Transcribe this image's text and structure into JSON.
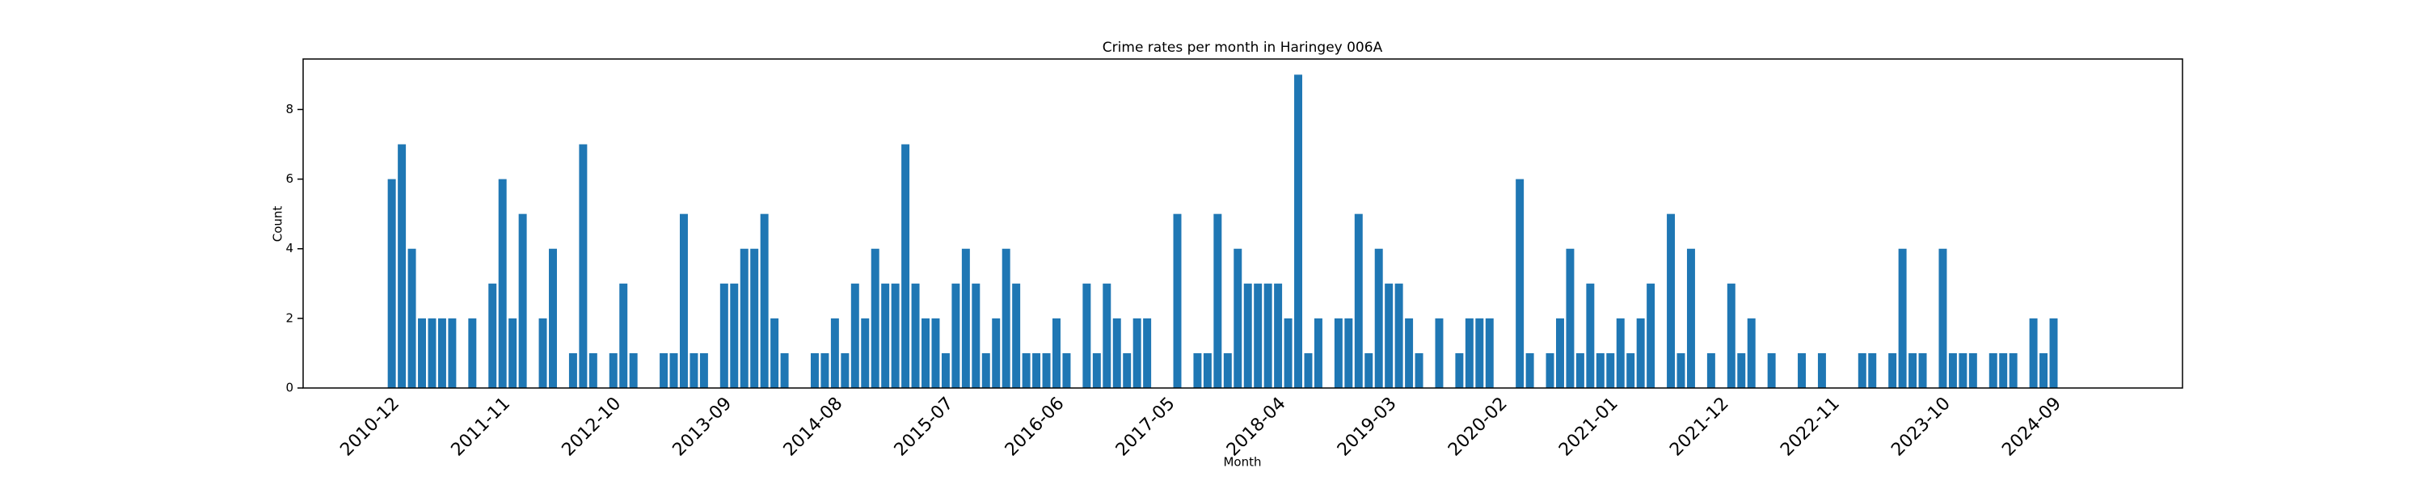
{
  "chart_data": {
    "type": "bar",
    "title": "Crime rates per month in Haringey 006A",
    "x_label": "Month",
    "y_label": "Count",
    "categories": [
      "2010-12",
      null,
      null,
      null,
      null,
      null,
      null,
      null,
      null,
      null,
      null,
      "2011-11",
      null,
      null,
      null,
      null,
      null,
      null,
      null,
      null,
      null,
      null,
      "2012-10",
      null,
      null,
      null,
      null,
      null,
      null,
      null,
      null,
      null,
      null,
      "2013-09",
      null,
      null,
      null,
      null,
      null,
      null,
      null,
      null,
      null,
      null,
      "2014-08",
      null,
      null,
      null,
      null,
      null,
      null,
      null,
      null,
      null,
      null,
      "2015-07",
      null,
      null,
      null,
      null,
      null,
      null,
      null,
      null,
      null,
      null,
      "2016-06",
      null,
      null,
      null,
      null,
      null,
      null,
      null,
      null,
      null,
      null,
      "2017-05",
      null,
      null,
      null,
      null,
      null,
      null,
      null,
      null,
      null,
      null,
      "2018-04",
      null,
      null,
      null,
      null,
      null,
      null,
      null,
      null,
      null,
      null,
      "2019-03",
      null,
      null,
      null,
      null,
      null,
      null,
      null,
      null,
      null,
      null,
      "2020-02",
      null,
      null,
      null,
      null,
      null,
      null,
      null,
      null,
      null,
      null,
      "2021-01",
      null,
      null,
      null,
      null,
      null,
      null,
      null,
      null,
      null,
      null,
      "2021-12",
      null,
      null,
      null,
      null,
      null,
      null,
      null,
      null,
      null,
      null,
      "2022-11",
      null,
      null,
      null,
      null,
      null,
      null,
      null,
      null,
      null,
      null,
      "2023-10",
      null,
      null,
      null,
      null,
      null,
      null,
      null,
      null,
      null,
      null,
      "2024-09"
    ],
    "values": [
      6,
      7,
      4,
      2,
      2,
      2,
      2,
      0,
      2,
      0,
      3,
      6,
      2,
      5,
      0,
      2,
      4,
      0,
      1,
      7,
      1,
      0,
      1,
      3,
      1,
      0,
      0,
      1,
      1,
      5,
      1,
      1,
      0,
      3,
      3,
      4,
      4,
      5,
      2,
      1,
      0,
      0,
      1,
      1,
      2,
      1,
      3,
      2,
      4,
      3,
      3,
      7,
      3,
      2,
      2,
      1,
      3,
      4,
      3,
      1,
      2,
      4,
      3,
      1,
      1,
      1,
      2,
      1,
      0,
      3,
      1,
      3,
      2,
      1,
      2,
      2,
      0,
      0,
      5,
      0,
      1,
      1,
      5,
      1,
      4,
      3,
      3,
      3,
      3,
      2,
      9,
      1,
      2,
      0,
      2,
      2,
      5,
      1,
      4,
      3,
      3,
      2,
      1,
      0,
      2,
      0,
      1,
      2,
      2,
      2,
      0,
      0,
      6,
      1,
      0,
      1,
      2,
      4,
      1,
      3,
      1,
      1,
      2,
      1,
      2,
      3,
      0,
      5,
      1,
      4,
      0,
      1,
      0,
      3,
      1,
      2,
      0,
      1,
      0,
      0,
      1,
      0,
      1,
      0,
      0,
      0,
      1,
      1,
      0,
      1,
      4,
      1,
      1,
      0,
      4,
      1,
      1,
      1,
      0,
      1,
      1,
      1,
      0,
      2,
      1,
      2
    ],
    "color": "#1f77b4",
    "ylim": [
      0,
      9.45
    ],
    "yticks": [
      0,
      2,
      4,
      6,
      8
    ],
    "grid": false
  }
}
